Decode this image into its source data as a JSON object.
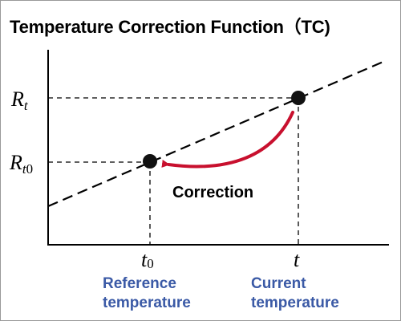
{
  "title": "Temperature Correction Function（TC)",
  "y_axis": {
    "rt_var": "R",
    "rt_sub": "t",
    "rt0_var": "R",
    "rt0_sub_italic": "t",
    "rt0_sub_plain": "0"
  },
  "x_axis": {
    "t0_var": "t",
    "t0_sub": "0",
    "t_var": "t"
  },
  "correction_label": "Correction",
  "captions": {
    "reference_line1": "Reference",
    "reference_line2": "temperature",
    "current_line1": "Current",
    "current_line2": "temperature"
  },
  "colors": {
    "arrow": "#c8102e",
    "caption": "#3b5aa6"
  }
}
